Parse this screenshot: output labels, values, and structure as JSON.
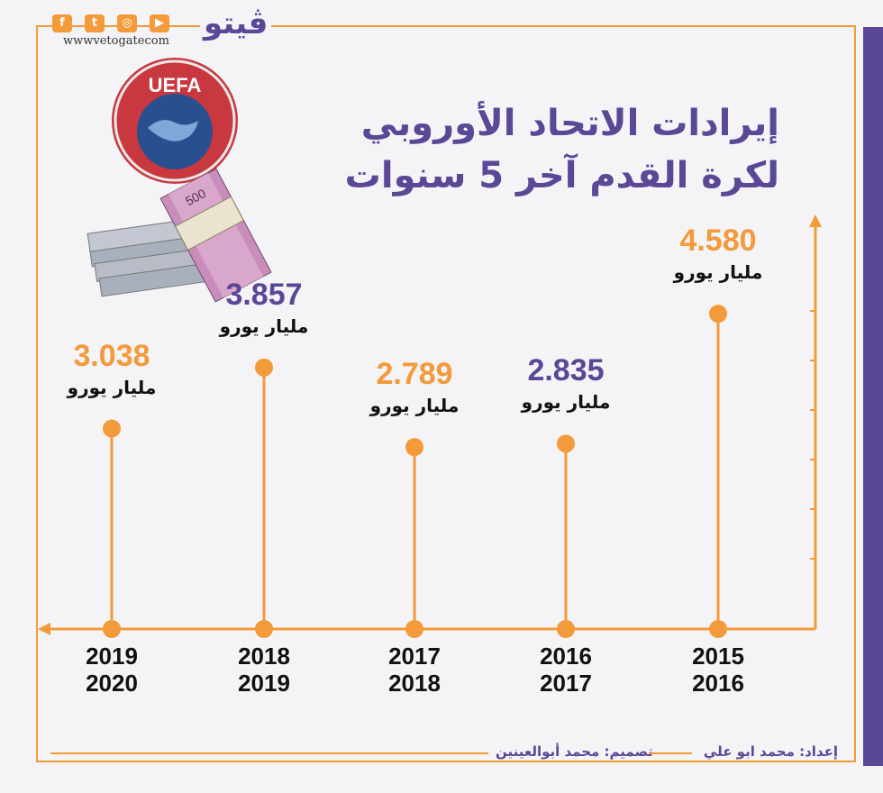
{
  "header": {
    "logo_text": "ڤيتو",
    "site_url": "wwwvetogatecom",
    "social_icons": [
      "facebook-icon",
      "twitter-icon",
      "instagram-icon",
      "youtube-icon"
    ]
  },
  "emblem": {
    "text": "UEFA"
  },
  "title": {
    "line1": "إيرادات الاتحاد الأوروبي",
    "line2": "لكرة القدم آخر 5 سنوات"
  },
  "colors": {
    "orange": "#f39a3a",
    "purple": "#5a4796",
    "background": "#f4f3f6"
  },
  "chart_data": {
    "type": "line",
    "title": "إيرادات الاتحاد الأوروبي لكرة القدم آخر 5 سنوات",
    "categories": [
      "2015\n2016",
      "2016\n2017",
      "2017\n2018",
      "2018\n2019",
      "2019\n2020"
    ],
    "values": [
      4.58,
      2.835,
      2.789,
      3.857,
      3.038
    ],
    "labels": [
      "4.580",
      "2.835",
      "2.789",
      "3.857",
      "3.038"
    ],
    "unit": "مليار يورو",
    "x_direction": "right-to-left",
    "label_colors": [
      "#f39a3a",
      "#5a4796",
      "#f39a3a",
      "#5a4796",
      "#f39a3a"
    ]
  },
  "footer": {
    "prepared_by": "إعداد: محمد ابو علي",
    "design_by": "تصميم: محمد أبوالعينين"
  }
}
